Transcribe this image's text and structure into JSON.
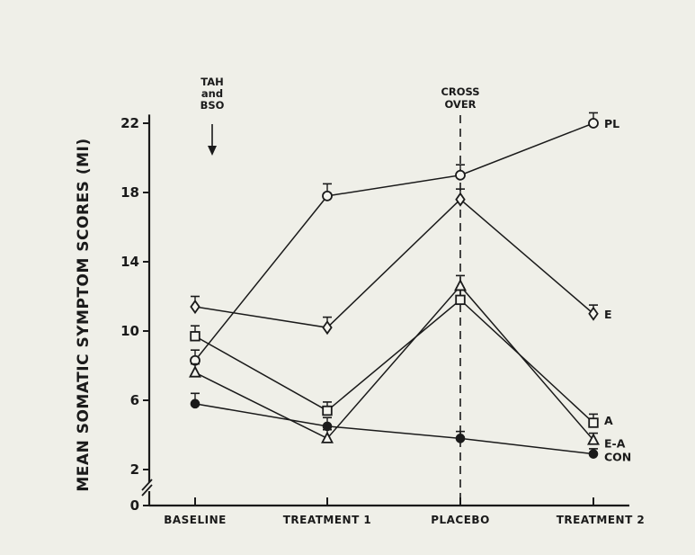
{
  "chart_data": {
    "type": "line",
    "title": "",
    "xlabel": "",
    "ylabel": "MEAN SOMATIC SYMPTOM SCORES (MI)",
    "categories": [
      "BASELINE",
      "TREATMENT 1",
      "PLACEBO",
      "TREATMENT 2"
    ],
    "yticks": [
      0,
      2,
      6,
      10,
      14,
      18,
      22
    ],
    "ylim": [
      0,
      22.5
    ],
    "axis_break": true,
    "grid": false,
    "annotations": [
      {
        "lines": [
          "TAH",
          "and",
          "BSO"
        ],
        "category": "BASELINE",
        "marker": "arrow-down"
      },
      {
        "lines": [
          "CROSS",
          "OVER"
        ],
        "category": "PLACEBO",
        "marker": "dashed-vertical-line"
      }
    ],
    "series": [
      {
        "name": "PL",
        "marker": "circle-open",
        "values": [
          8.3,
          17.8,
          19.0,
          22.0
        ],
        "errors": [
          0.6,
          0.7,
          0.6,
          0.6
        ]
      },
      {
        "name": "E",
        "marker": "diamond-open",
        "values": [
          11.4,
          10.2,
          17.6,
          11.0
        ],
        "errors": [
          0.6,
          0.6,
          0.6,
          0.5
        ]
      },
      {
        "name": "A",
        "marker": "square-open",
        "values": [
          9.7,
          5.4,
          11.8,
          4.7
        ],
        "errors": [
          0.6,
          0.5,
          0.7,
          0.5
        ]
      },
      {
        "name": "E-A",
        "marker": "triangle-open",
        "values": [
          7.6,
          3.8,
          12.6,
          3.7
        ],
        "errors": [
          0.5,
          0.5,
          0.6,
          0.4
        ]
      },
      {
        "name": "CON",
        "marker": "circle-filled",
        "values": [
          5.8,
          4.5,
          3.8,
          2.9
        ],
        "errors": [
          0.6,
          0.5,
          0.4,
          0.3
        ]
      }
    ]
  }
}
